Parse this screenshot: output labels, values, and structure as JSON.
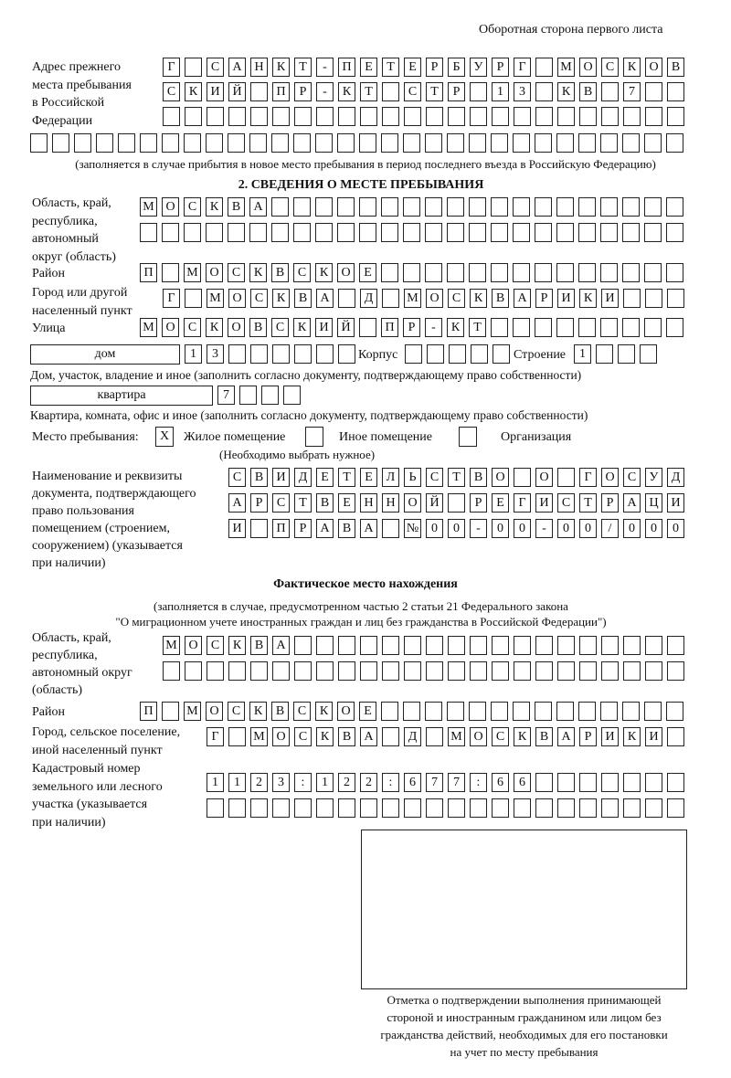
{
  "header": {
    "page_note": "Оборотная сторона первого листа"
  },
  "prev_address": {
    "label": [
      "Адрес прежнего",
      "места пребывания",
      "в Российской",
      "Федерации"
    ],
    "rows": [
      [
        "Г",
        "",
        "С",
        "А",
        "Н",
        "К",
        "Т",
        "-",
        "П",
        "Е",
        "Т",
        "Е",
        "Р",
        "Б",
        "У",
        "Р",
        "Г",
        "",
        "М",
        "О",
        "С",
        "К",
        "О",
        "В"
      ],
      [
        "С",
        "К",
        "И",
        "Й",
        "",
        "П",
        "Р",
        "-",
        "К",
        "Т",
        "",
        "С",
        "Т",
        "Р",
        "",
        "1",
        "3",
        "",
        "К",
        "В",
        "",
        "7",
        "",
        ""
      ],
      [
        "",
        "",
        "",
        "",
        "",
        "",
        "",
        "",
        "",
        "",
        "",
        "",
        "",
        "",
        "",
        "",
        "",
        "",
        "",
        "",
        "",
        "",
        "",
        ""
      ],
      [
        "",
        "",
        "",
        "",
        "",
        "",
        "",
        "",
        "",
        "",
        "",
        "",
        "",
        "",
        "",
        "",
        "",
        "",
        "",
        "",
        "",
        "",
        "",
        "",
        "",
        "",
        "",
        "",
        "",
        ""
      ]
    ],
    "note": "(заполняется в случае прибытия в новое место пребывания в период последнего въезда в Российскую Федерацию)"
  },
  "section2": {
    "title": "2. СВЕДЕНИЯ О МЕСТЕ ПРЕБЫВАНИЯ",
    "region_label": [
      "Область, край,",
      "республика,",
      "автономный",
      "округ (область)"
    ],
    "region_rows": [
      [
        "М",
        "О",
        "С",
        "К",
        "В",
        "А",
        "",
        "",
        "",
        "",
        "",
        "",
        "",
        "",
        "",
        "",
        "",
        "",
        "",
        "",
        "",
        "",
        "",
        "",
        ""
      ],
      [
        "",
        "",
        "",
        "",
        "",
        "",
        "",
        "",
        "",
        "",
        "",
        "",
        "",
        "",
        "",
        "",
        "",
        "",
        "",
        "",
        "",
        "",
        "",
        "",
        ""
      ]
    ],
    "district_label": "Район",
    "district_row": [
      "П",
      "",
      "М",
      "О",
      "С",
      "К",
      "В",
      "С",
      "К",
      "О",
      "Е",
      "",
      "",
      "",
      "",
      "",
      "",
      "",
      "",
      "",
      "",
      "",
      "",
      "",
      ""
    ],
    "city_label": [
      "Город или другой",
      "населенный пункт"
    ],
    "city_row": [
      "Г",
      "",
      "М",
      "О",
      "С",
      "К",
      "В",
      "А",
      "",
      "Д",
      "",
      "М",
      "О",
      "С",
      "К",
      "В",
      "А",
      "Р",
      "И",
      "К",
      "И",
      "",
      "",
      ""
    ],
    "street_label": "Улица",
    "street_row": [
      "М",
      "О",
      "С",
      "К",
      "О",
      "В",
      "С",
      "К",
      "И",
      "Й",
      "",
      "П",
      "Р",
      "-",
      "К",
      "Т",
      "",
      "",
      "",
      "",
      "",
      "",
      "",
      "",
      ""
    ],
    "house_type": "дом",
    "house_row": [
      "1",
      "3",
      "",
      "",
      "",
      "",
      "",
      ""
    ],
    "korpus_label": "Корпус",
    "korpus_row": [
      "",
      "",
      "",
      "",
      ""
    ],
    "building_label": "Строение",
    "building_row": [
      "1",
      "",
      "",
      ""
    ],
    "house_note": "Дом, участок, владение и иное (заполнить согласно документу, подтверждающему право собственности)",
    "flat_type": "квартира",
    "flat_row": [
      "7",
      "",
      "",
      ""
    ],
    "flat_note": "Квартира, комната, офис и иное (заполнить согласно документу, подтверждающему право собственности)",
    "stay_label": "Место пребывания:",
    "stay_options": [
      {
        "label": "Жилое помещение",
        "mark": "Х"
      },
      {
        "label": "Иное помещение",
        "mark": ""
      },
      {
        "label": "Организация",
        "mark": ""
      }
    ],
    "stay_note": "(Необходимо выбрать нужное)",
    "doc_label": [
      "Наименование и реквизиты",
      "документа, подтверждающего",
      "право пользования",
      "помещением (строением,",
      "сооружением) (указывается",
      "при наличии)"
    ],
    "doc_rows": [
      [
        "С",
        "В",
        "И",
        "Д",
        "Е",
        "Т",
        "Е",
        "Л",
        "Ь",
        "С",
        "Т",
        "В",
        "О",
        "",
        "О",
        "",
        "Г",
        "О",
        "С",
        "У",
        "Д"
      ],
      [
        "А",
        "Р",
        "С",
        "Т",
        "В",
        "Е",
        "Н",
        "Н",
        "О",
        "Й",
        "",
        "Р",
        "Е",
        "Г",
        "И",
        "С",
        "Т",
        "Р",
        "А",
        "Ц",
        "И"
      ],
      [
        "И",
        "",
        "П",
        "Р",
        "А",
        "В",
        "А",
        "",
        "№",
        "0",
        "0",
        "-",
        "0",
        "0",
        "-",
        "0",
        "0",
        "/",
        "0",
        "0",
        "0"
      ]
    ]
  },
  "actual": {
    "title": "Фактическое место нахождения",
    "note": [
      "(заполняется в случае, предусмотренном частью 2 статьи 21 Федерального закона",
      "\"О миграционном учете иностранных граждан и лиц без гражданства в Российской Федерации\")"
    ],
    "region_label": [
      "Область, край,",
      "республика,",
      "автономный округ",
      "(область)"
    ],
    "region_rows": [
      [
        "М",
        "О",
        "С",
        "К",
        "В",
        "А",
        "",
        "",
        "",
        "",
        "",
        "",
        "",
        "",
        "",
        "",
        "",
        "",
        "",
        "",
        "",
        "",
        "",
        ""
      ],
      [
        "",
        "",
        "",
        "",
        "",
        "",
        "",
        "",
        "",
        "",
        "",
        "",
        "",
        "",
        "",
        "",
        "",
        "",
        "",
        "",
        "",
        "",
        "",
        ""
      ]
    ],
    "district_label": "Район",
    "district_row": [
      "П",
      "",
      "М",
      "О",
      "С",
      "К",
      "В",
      "С",
      "К",
      "О",
      "Е",
      "",
      "",
      "",
      "",
      "",
      "",
      "",
      "",
      "",
      "",
      "",
      "",
      "",
      ""
    ],
    "city_label": [
      "Город, сельское поселение,",
      "иной населенный пункт"
    ],
    "city_row": [
      "Г",
      "",
      "М",
      "О",
      "С",
      "К",
      "В",
      "А",
      "",
      "Д",
      "",
      "М",
      "О",
      "С",
      "К",
      "В",
      "А",
      "Р",
      "И",
      "К",
      "И",
      ""
    ],
    "cadastral_label": [
      "Кадастровый номер",
      "земельного или лесного",
      "участка (указывается",
      "при наличии)"
    ],
    "cadastral_rows": [
      [
        "1",
        "1",
        "2",
        "3",
        ":",
        "1",
        "2",
        "2",
        ":",
        "6",
        "7",
        "7",
        ":",
        "6",
        "6",
        "",
        "",
        "",
        "",
        "",
        "",
        ""
      ],
      [
        "",
        "",
        "",
        "",
        "",
        "",
        "",
        "",
        "",
        "",
        "",
        "",
        "",
        "",
        "",
        "",
        "",
        "",
        "",
        "",
        "",
        ""
      ]
    ]
  },
  "confirmation": {
    "caption": [
      "Отметка о подтверждении выполнения принимающей",
      "стороной и иностранным гражданином или лицом без",
      "гражданства действий, необходимых для его постановки",
      "на учет по месту пребывания"
    ]
  }
}
